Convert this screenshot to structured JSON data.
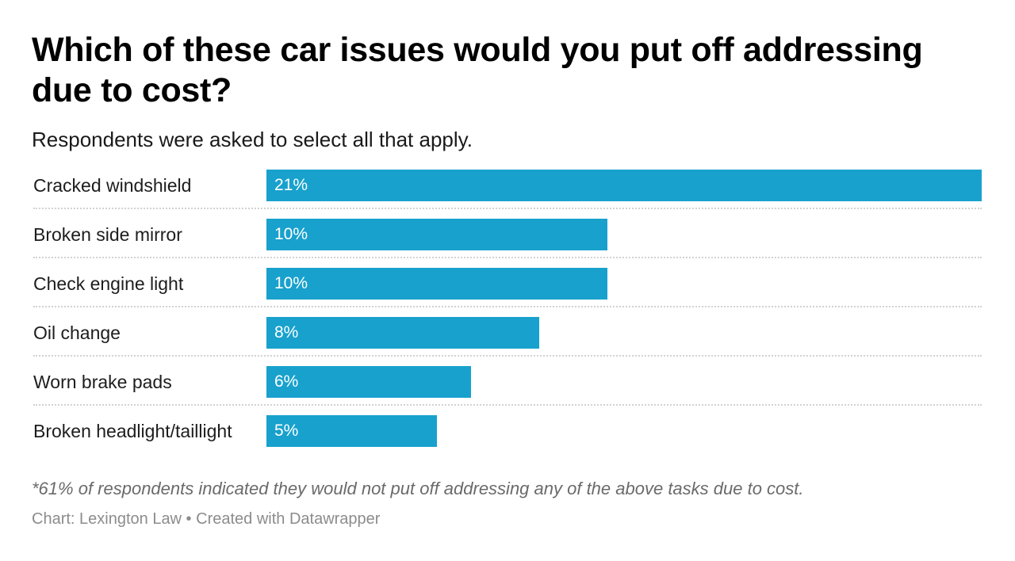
{
  "chart_data": {
    "type": "bar",
    "orientation": "horizontal",
    "title": "Which of these car issues would you put off addressing due to cost?",
    "subtitle": "Respondents were asked to select all that apply.",
    "categories": [
      "Cracked windshield",
      "Broken side mirror",
      "Check engine light",
      "Oil change",
      "Worn brake pads",
      "Broken headlight/taillight"
    ],
    "values": [
      21,
      10,
      10,
      8,
      6,
      5
    ],
    "value_labels": [
      "21%",
      "10%",
      "10%",
      "8%",
      "6%",
      "5%"
    ],
    "xlim": [
      0,
      21
    ],
    "unit": "%",
    "bar_color": "#18a1cd",
    "note": "*61% of respondents indicated they would not put off addressing any of the above tasks due to cost.",
    "source": "Chart: Lexington Law • Created with Datawrapper"
  }
}
